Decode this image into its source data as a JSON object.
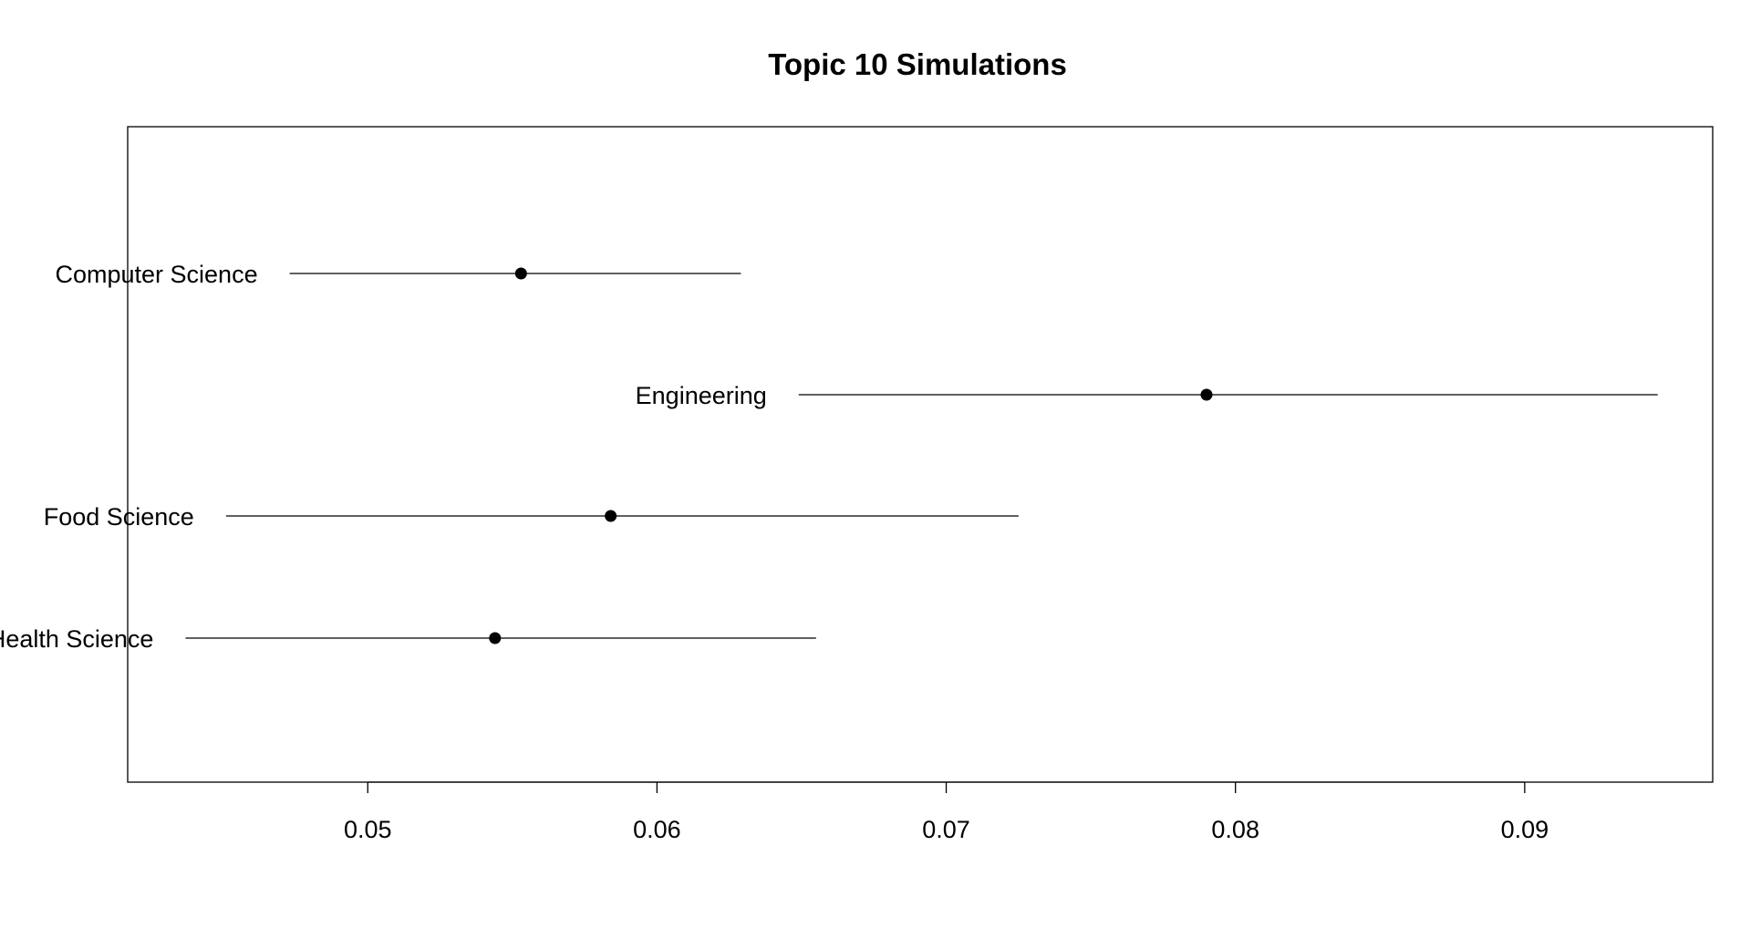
{
  "chart_data": {
    "type": "scatter",
    "title": "Topic 10 Simulations",
    "xlabel": "",
    "ylabel": "",
    "xlim": [
      0.0417,
      0.0965
    ],
    "x_ticks": [
      0.05,
      0.06,
      0.07,
      0.08,
      0.09
    ],
    "x_tick_labels": [
      "0.05",
      "0.06",
      "0.07",
      "0.08",
      "0.09"
    ],
    "grid": false,
    "legend": "none",
    "points": [
      {
        "label": "Computer Science",
        "estimate": 0.0553,
        "lower": 0.0473,
        "upper": 0.0629
      },
      {
        "label": "Engineering",
        "estimate": 0.079,
        "lower": 0.0649,
        "upper": 0.0946
      },
      {
        "label": "Food Science",
        "estimate": 0.0584,
        "lower": 0.0451,
        "upper": 0.0725
      },
      {
        "label": "Health Science",
        "estimate": 0.0544,
        "lower": 0.0437,
        "upper": 0.0655
      }
    ]
  },
  "colors": {
    "ink": "#000000",
    "background": "#ffffff"
  }
}
